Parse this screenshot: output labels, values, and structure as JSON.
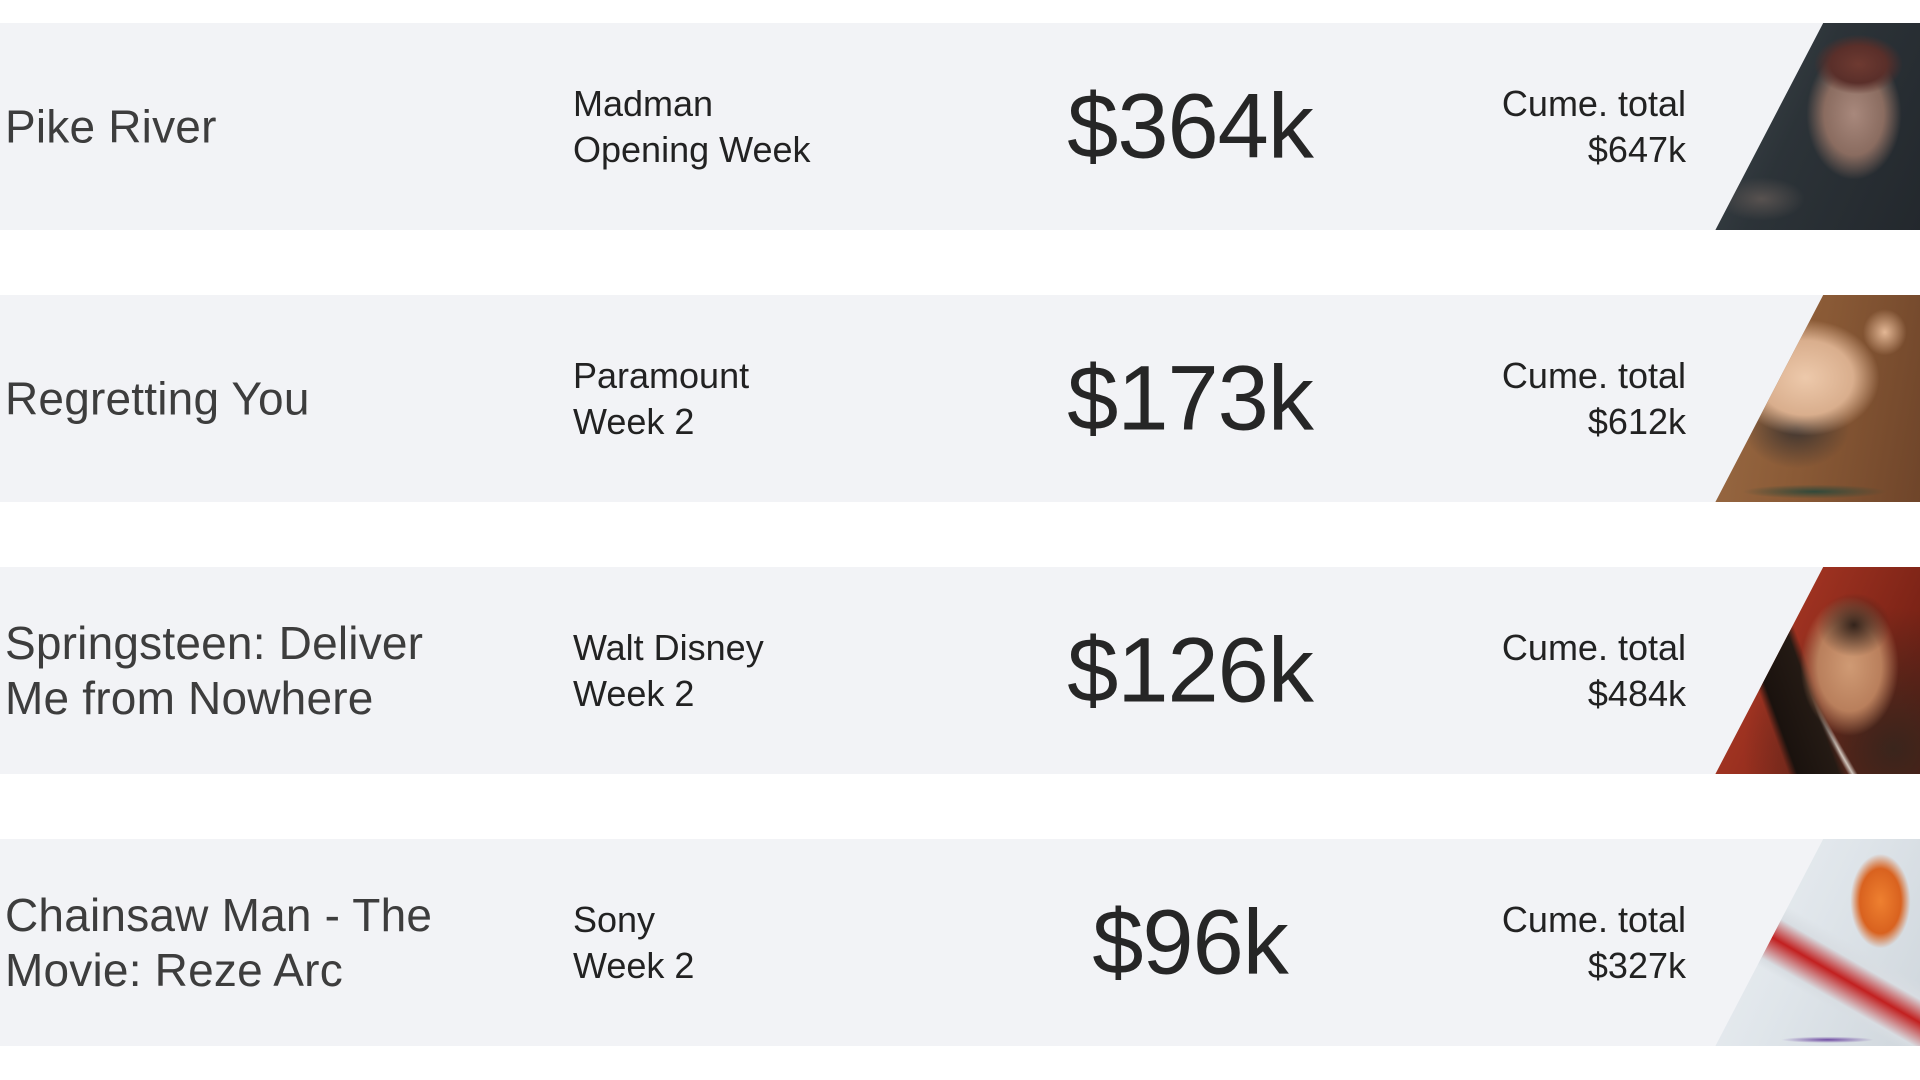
{
  "page": {
    "background_color": "#ffffff",
    "row_background_color": "#f2f3f6",
    "title_color": "#3d3d3d",
    "text_color": "#222222"
  },
  "rows": [
    {
      "title": "Pike River",
      "distributor": "Madman",
      "week_label": "Opening Week",
      "weekly_gross": "$364k",
      "cume_label": "Cume. total",
      "cume_total": "$647k",
      "poster_alt": "Pike River still: woman with short auburn hair in a dim blue-grey room",
      "poster_palette": [
        "#2c3338",
        "#6e3a31",
        "#a8887c"
      ]
    },
    {
      "title": "Regretting You",
      "distributor": "Paramount",
      "week_label": "Week 2",
      "weekly_gross": "$173k",
      "cume_label": "Cume. total",
      "cume_total": "$612k",
      "poster_alt": "Regretting You still: man embracing smiling woman against warm wood background",
      "poster_palette": [
        "#8a5a36",
        "#edc9ab",
        "#31493a"
      ]
    },
    {
      "title": "Springsteen: Deliver Me from Nowhere",
      "distributor": "Walt Disney",
      "week_label": "Week 2",
      "weekly_gross": "$126k",
      "cume_label": "Cume. total",
      "cume_total": "$484k",
      "poster_alt": "Springsteen still: singer with curly hair at a microphone under red concert light",
      "poster_palette": [
        "#9c3120",
        "#cf9a74",
        "#1a120e"
      ]
    },
    {
      "title": "Chainsaw Man - The Movie: Reze Arc",
      "distributor": "Sony",
      "week_label": "Week 2",
      "weekly_gross": "$96k",
      "cume_label": "Cume. total",
      "cume_total": "$327k",
      "poster_alt": "Chainsaw Man anime art: orange chainsaw head and blood-streaked blade on pale sky",
      "poster_palette": [
        "#ee8030",
        "#c22020",
        "#dfe5ea"
      ]
    }
  ]
}
